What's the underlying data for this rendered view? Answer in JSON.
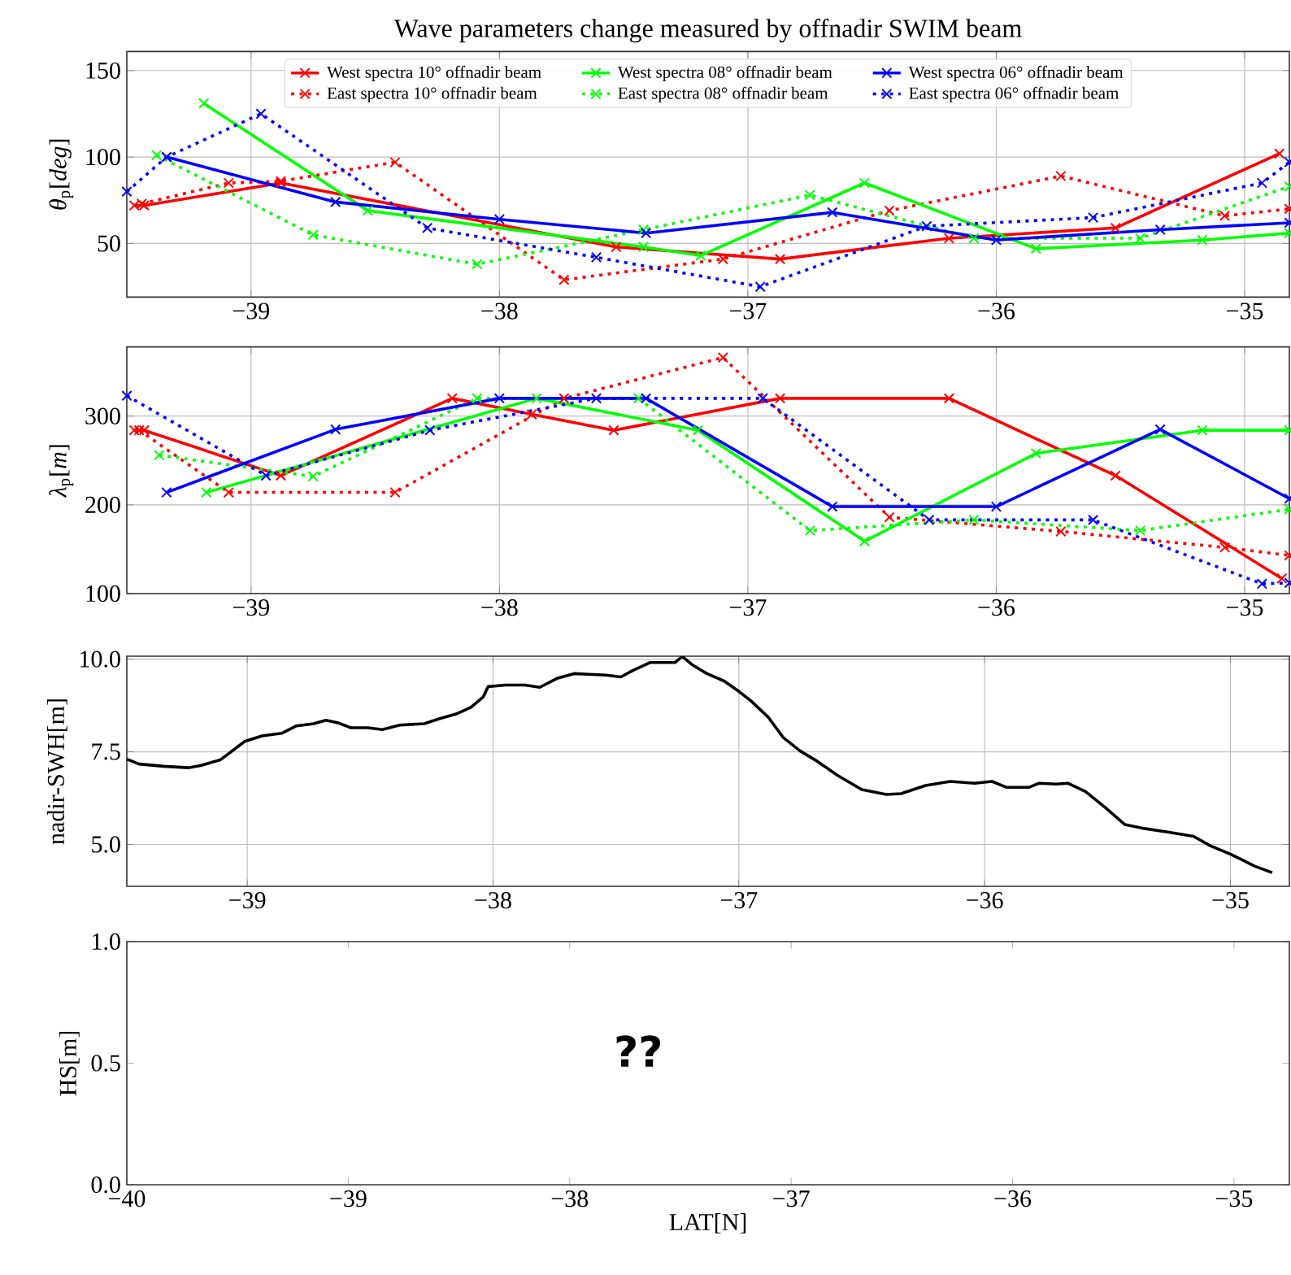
{
  "chart_data": [
    {
      "type": "line",
      "title": "Wave parameters change measured by offnadir SWIM beam",
      "ylabel": "*θ*$_{p}$[*deg*]",
      "xlim": [
        -39.5,
        -34.82
      ],
      "ylim": [
        19,
        161
      ],
      "xticks": [
        {
          "value": -39,
          "label": "−39"
        },
        {
          "value": -38,
          "label": "−38"
        },
        {
          "value": -37,
          "label": "−37"
        },
        {
          "value": -36,
          "label": "−36"
        },
        {
          "value": -35,
          "label": "−35"
        }
      ],
      "yticks": [
        50,
        100,
        150
      ],
      "grid": true,
      "legend": "top",
      "marker": "cross",
      "series": [
        {
          "name": "West spectra 10° offnadir beam",
          "color": "#ff0000",
          "line_style": "solid",
          "x": [
            -39.47,
            -39.43,
            -38.88,
            -37.53,
            -36.87,
            -36.19,
            -35.52,
            -34.86
          ],
          "values": [
            72,
            72,
            85,
            48,
            41,
            53,
            59,
            102
          ]
        },
        {
          "name": "East spectra 10° offnadir beam",
          "color": "#ff0000",
          "line_style": "dotted",
          "x": [
            -39.44,
            -39.09,
            -38.88,
            -38.42,
            -37.74,
            -37.1,
            -36.43,
            -35.74,
            -35.08,
            -34.82
          ],
          "values": [
            73,
            85,
            86,
            97,
            29,
            41,
            69,
            89,
            66,
            70
          ]
        },
        {
          "name": "West spectra 08° offnadir beam",
          "color": "#00ff00",
          "line_style": "solid",
          "x": [
            -39.19,
            -38.53,
            -37.42,
            -37.19,
            -36.53,
            -35.84,
            -35.17,
            -34.82
          ],
          "values": [
            131,
            69,
            48,
            43,
            85,
            47,
            52,
            56
          ]
        },
        {
          "name": "East spectra 08° offnadir beam",
          "color": "#00ff00",
          "line_style": "dotted",
          "x": [
            -39.38,
            -38.75,
            -38.09,
            -37.42,
            -36.75,
            -36.09,
            -35.42,
            -34.82
          ],
          "values": [
            101,
            55,
            38,
            58,
            78,
            53,
            53,
            83
          ]
        },
        {
          "name": "West spectra 06° offnadir beam",
          "color": "#0000ff",
          "line_style": "solid",
          "x": [
            -39.34,
            -38.66,
            -38.0,
            -37.41,
            -36.66,
            -36.0,
            -35.34,
            -34.82
          ],
          "values": [
            100,
            74,
            64,
            56,
            68,
            52,
            58,
            62
          ]
        },
        {
          "name": "East spectra 06° offnadir beam",
          "color": "#0000ff",
          "line_style": "dotted",
          "x": [
            -39.5,
            -39.34,
            -38.96,
            -38.29,
            -37.61,
            -36.95,
            -36.28,
            -35.61,
            -34.93,
            -34.82
          ],
          "values": [
            80,
            100,
            125,
            59,
            42,
            25,
            60,
            65,
            85,
            97
          ]
        }
      ]
    },
    {
      "type": "line",
      "ylabel": "*λ*$_{p}$[*m*]",
      "xlim": [
        -39.5,
        -34.82
      ],
      "ylim": [
        100,
        378
      ],
      "xticks": [
        {
          "value": -39,
          "label": "−39"
        },
        {
          "value": -38,
          "label": "−38"
        },
        {
          "value": -37,
          "label": "−37"
        },
        {
          "value": -36,
          "label": "−36"
        },
        {
          "value": -35,
          "label": "−35"
        }
      ],
      "yticks": [
        100,
        200,
        300
      ],
      "grid": true,
      "marker": "cross",
      "series": [
        {
          "color": "#ff0000",
          "line_style": "solid",
          "x": [
            -39.47,
            -39.43,
            -38.88,
            -38.19,
            -37.87,
            -37.54,
            -36.87,
            -36.19,
            -35.52,
            -34.85
          ],
          "values": [
            284,
            284,
            233,
            320,
            302,
            284,
            320,
            320,
            233,
            117
          ]
        },
        {
          "color": "#ff0000",
          "line_style": "dotted",
          "x": [
            -39.45,
            -39.09,
            -38.42,
            -37.74,
            -37.1,
            -36.43,
            -35.74,
            -35.08,
            -34.82
          ],
          "values": [
            284,
            214,
            214,
            320,
            366,
            186,
            170,
            152,
            143
          ]
        },
        {
          "color": "#00ff00",
          "line_style": "solid",
          "x": [
            -39.18,
            -37.85,
            -37.2,
            -36.53,
            -35.84,
            -35.17,
            -34.82
          ],
          "values": [
            214,
            320,
            284,
            159,
            258,
            284,
            284
          ]
        },
        {
          "color": "#00ff00",
          "line_style": "dotted",
          "x": [
            -39.37,
            -38.75,
            -38.09,
            -37.44,
            -36.75,
            -36.09,
            -35.42,
            -34.82
          ],
          "values": [
            256,
            232,
            320,
            320,
            171,
            183,
            171,
            195
          ]
        },
        {
          "color": "#0000ff",
          "line_style": "solid",
          "x": [
            -39.34,
            -38.66,
            -38.0,
            -37.41,
            -36.66,
            -36.0,
            -35.34,
            -34.82
          ],
          "values": [
            214,
            285,
            320,
            320,
            198,
            198,
            285,
            207
          ]
        },
        {
          "color": "#0000ff",
          "line_style": "dotted",
          "x": [
            -39.5,
            -38.94,
            -38.28,
            -37.61,
            -36.94,
            -36.27,
            -35.61,
            -34.93,
            -34.82
          ],
          "values": [
            323,
            233,
            284,
            320,
            320,
            183,
            183,
            111,
            112
          ]
        }
      ]
    },
    {
      "type": "line",
      "ylabel": "nadir-SWH[m]",
      "xlim": [
        -39.49,
        -34.76
      ],
      "ylim": [
        3.87,
        10.08
      ],
      "xticks": [
        {
          "value": -39,
          "label": "−39"
        },
        {
          "value": -38,
          "label": "−38"
        },
        {
          "value": -37,
          "label": "−37"
        },
        {
          "value": -36,
          "label": "−36"
        },
        {
          "value": -35,
          "label": "−35"
        }
      ],
      "yticks": [
        {
          "value": 5,
          "label": "5.0"
        },
        {
          "value": 7.5,
          "label": "7.5"
        },
        {
          "value": 10,
          "label": "10.0"
        }
      ],
      "grid": true,
      "series": [
        {
          "color": "#000000",
          "line_style": "solid",
          "x": [
            -39.49,
            -39.44,
            -39.34,
            -39.24,
            -39.19,
            -39.11,
            -39.01,
            -38.94,
            -38.86,
            -38.8,
            -38.73,
            -38.68,
            -38.63,
            -38.58,
            -38.51,
            -38.45,
            -38.38,
            -38.28,
            -38.22,
            -38.15,
            -38.09,
            -38.04,
            -38.02,
            -37.95,
            -37.87,
            -37.81,
            -37.74,
            -37.67,
            -37.61,
            -37.54,
            -37.48,
            -37.43,
            -37.36,
            -37.26,
            -37.23,
            -37.19,
            -37.13,
            -37.06,
            -37.0,
            -36.95,
            -36.88,
            -36.82,
            -36.75,
            -36.68,
            -36.6,
            -36.5,
            -36.4,
            -36.34,
            -36.24,
            -36.14,
            -36.04,
            -35.97,
            -35.91,
            -35.82,
            -35.78,
            -35.71,
            -35.66,
            -35.59,
            -35.51,
            -35.43,
            -35.35,
            -35.25,
            -35.15,
            -35.08,
            -35.0,
            -34.9,
            -34.83
          ],
          "values": [
            7.3,
            7.17,
            7.11,
            7.07,
            7.13,
            7.28,
            7.78,
            7.93,
            8.0,
            8.2,
            8.26,
            8.35,
            8.28,
            8.15,
            8.15,
            8.1,
            8.22,
            8.26,
            8.39,
            8.52,
            8.7,
            8.98,
            9.26,
            9.3,
            9.3,
            9.24,
            9.48,
            9.61,
            9.59,
            9.57,
            9.52,
            9.7,
            9.91,
            9.91,
            10.07,
            9.85,
            9.61,
            9.41,
            9.13,
            8.87,
            8.43,
            7.89,
            7.52,
            7.24,
            6.87,
            6.48,
            6.35,
            6.37,
            6.59,
            6.7,
            6.65,
            6.7,
            6.54,
            6.54,
            6.65,
            6.63,
            6.65,
            6.43,
            6.0,
            5.54,
            5.43,
            5.33,
            5.22,
            4.96,
            4.74,
            4.41,
            4.24
          ]
        }
      ]
    },
    {
      "type": "line",
      "xlabel": "LAT[N]",
      "ylabel": "HS[m]",
      "xlim": [
        -40,
        -34.75
      ],
      "ylim": [
        0,
        1
      ],
      "xticks": [
        {
          "value": -40,
          "label": "−40"
        },
        {
          "value": -39,
          "label": "−39"
        },
        {
          "value": -38,
          "label": "−38"
        },
        {
          "value": -37,
          "label": "−37"
        },
        {
          "value": -36,
          "label": "−36"
        },
        {
          "value": -35,
          "label": "−35"
        }
      ],
      "yticks": [
        {
          "value": 0,
          "label": "0.0"
        },
        {
          "value": 0.5,
          "label": "0.5"
        },
        {
          "value": 1,
          "label": "1.0"
        }
      ],
      "annotations": [
        "??"
      ]
    }
  ]
}
